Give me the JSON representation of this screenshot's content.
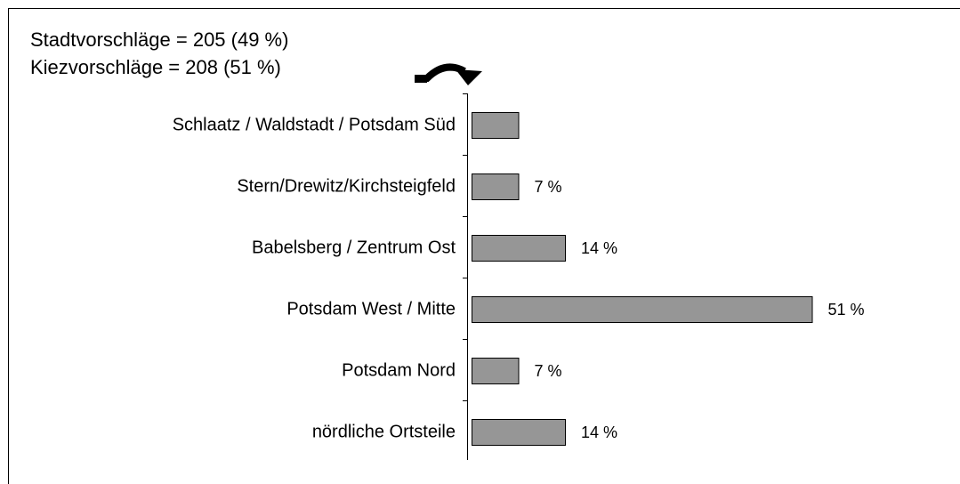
{
  "chart_data": {
    "type": "barh",
    "annotations": [
      "Stadtvorschläge = 205 (49 %)",
      "Kiezvorschläge = 208 (51 %)"
    ],
    "categories": [
      "Schlaatz / Waldstadt / Potsdam Süd",
      "Stern/Drewitz/Kirchsteigfeld",
      "Babelsberg / Zentrum Ost",
      "Potsdam West / Mitte",
      "Potsdam Nord",
      "nördliche Ortsteile"
    ],
    "values": [
      7,
      7,
      14,
      51,
      7,
      14
    ],
    "value_labels": [
      null,
      "7 %",
      "14 %",
      "51 %",
      "7 %",
      "14 %"
    ],
    "color": "#969696"
  }
}
